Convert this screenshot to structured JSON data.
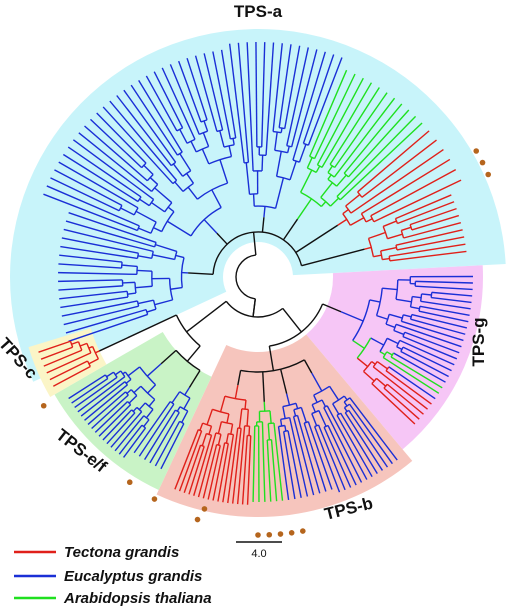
{
  "diagram": {
    "clades": [
      {
        "key": "TPS-a",
        "label": "TPS-a",
        "color": "#c8f4fa"
      },
      {
        "key": "TPS-g",
        "label": "TPS-g",
        "color": "#f6c6f6"
      },
      {
        "key": "TPS-b",
        "label": "TPS-b",
        "color": "#f6c5bd"
      },
      {
        "key": "TPS-e/f",
        "label": "TPS-e/f",
        "color": "#c9f3c6"
      },
      {
        "key": "TPS-c",
        "label": "TPS-c",
        "color": "#fbf5c7"
      }
    ],
    "legend": [
      {
        "label": "Tectona grandis",
        "color": "#e0201a"
      },
      {
        "label": "Eucalyptus grandis",
        "color": "#1a2fd6"
      },
      {
        "label": "Arabidopsis thaliana",
        "color": "#1fe01f"
      }
    ],
    "scale_bar": {
      "label": "4.0"
    },
    "marker_color": "#b5651d",
    "backbone_color": "#111111"
  }
}
